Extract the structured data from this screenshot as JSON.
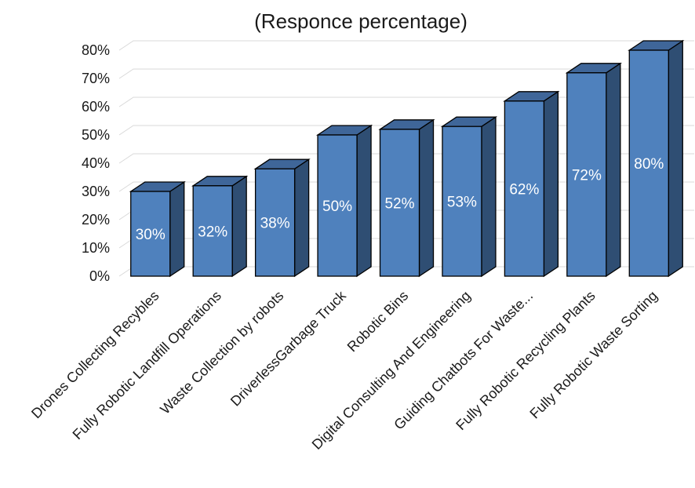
{
  "chart_data": {
    "type": "bar",
    "style": "3d-column",
    "title": "(Responce percentage)",
    "xlabel": "",
    "ylabel": "",
    "ylim": [
      0,
      80
    ],
    "yticks": [
      "0%",
      "10%",
      "20%",
      "30%",
      "40%",
      "50%",
      "60%",
      "70%",
      "80%"
    ],
    "grid": true,
    "legend": "none",
    "categories": [
      "Drones Collecting Recybles",
      "Fully Robotic Landfill Operations",
      "Waste Collection by robots",
      "DriverlessGarbage Truck",
      "Robotic Bins",
      "Digital Consulting And Engineering",
      "Guiding Chatbots For Waste...",
      "Fully Robotic Recycling Plants",
      "Fully Robotic Waste Sorting"
    ],
    "values": [
      30,
      32,
      38,
      50,
      52,
      53,
      62,
      72,
      80
    ],
    "data_labels": [
      "30%",
      "32%",
      "38%",
      "50%",
      "52%",
      "53%",
      "62%",
      "72%",
      "80%"
    ],
    "colors": {
      "front": "#4f81bd",
      "side": "#2f4e73",
      "top": "#3f6699",
      "outline": "#000000"
    }
  }
}
